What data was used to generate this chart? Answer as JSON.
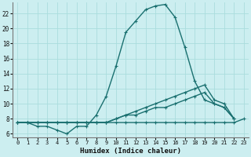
{
  "xlabel": "Humidex (Indice chaleur)",
  "bg_color": "#cceef0",
  "grid_color": "#aadddd",
  "line_color": "#1a7070",
  "xlim": [
    -0.5,
    23.5
  ],
  "ylim": [
    5.5,
    23.5
  ],
  "yticks": [
    6,
    8,
    10,
    12,
    14,
    16,
    18,
    20,
    22
  ],
  "xticks": [
    0,
    1,
    2,
    3,
    4,
    5,
    6,
    7,
    8,
    9,
    10,
    11,
    12,
    13,
    14,
    15,
    16,
    17,
    18,
    19,
    20,
    21,
    22,
    23
  ],
  "series": [
    {
      "x": [
        0,
        1,
        2,
        3,
        4,
        5,
        6,
        7,
        8,
        9,
        10,
        11,
        12,
        13,
        14,
        15,
        16,
        17,
        18,
        19,
        20,
        21,
        22
      ],
      "y": [
        7.5,
        7.5,
        7.0,
        7.0,
        6.5,
        6.0,
        7.0,
        7.0,
        8.5,
        11.0,
        15.0,
        19.5,
        21.0,
        22.5,
        23.0,
        23.2,
        21.5,
        17.5,
        13.0,
        10.5,
        10.0,
        9.5,
        8.0
      ]
    },
    {
      "x": [
        0,
        1,
        2,
        3,
        4,
        5,
        6,
        7,
        8,
        9,
        10,
        11,
        12,
        13,
        14,
        15,
        16,
        17,
        18,
        19,
        20,
        21,
        22
      ],
      "y": [
        7.5,
        7.5,
        7.5,
        7.5,
        7.5,
        7.5,
        7.5,
        7.5,
        7.5,
        7.5,
        8.0,
        8.5,
        9.0,
        9.5,
        10.0,
        10.5,
        11.0,
        11.5,
        12.0,
        12.5,
        10.5,
        10.0,
        8.0
      ]
    },
    {
      "x": [
        0,
        1,
        2,
        3,
        4,
        5,
        6,
        7,
        8,
        9,
        10,
        11,
        12,
        13,
        14,
        15,
        16,
        17,
        18,
        19,
        20,
        21,
        22
      ],
      "y": [
        7.5,
        7.5,
        7.5,
        7.5,
        7.5,
        7.5,
        7.5,
        7.5,
        7.5,
        7.5,
        8.0,
        8.5,
        8.5,
        9.0,
        9.5,
        9.5,
        10.0,
        10.5,
        11.0,
        11.5,
        10.0,
        9.5,
        8.0
      ]
    },
    {
      "x": [
        0,
        1,
        2,
        3,
        4,
        5,
        6,
        7,
        8,
        9,
        10,
        11,
        12,
        13,
        14,
        15,
        16,
        17,
        18,
        19,
        20,
        21,
        22,
        23
      ],
      "y": [
        7.5,
        7.5,
        7.5,
        7.5,
        7.5,
        7.5,
        7.5,
        7.5,
        7.5,
        7.5,
        7.5,
        7.5,
        7.5,
        7.5,
        7.5,
        7.5,
        7.5,
        7.5,
        7.5,
        7.5,
        7.5,
        7.5,
        7.5,
        8.0
      ]
    }
  ],
  "marker": "+",
  "marker_size": 3.5,
  "linewidth": 1.0
}
